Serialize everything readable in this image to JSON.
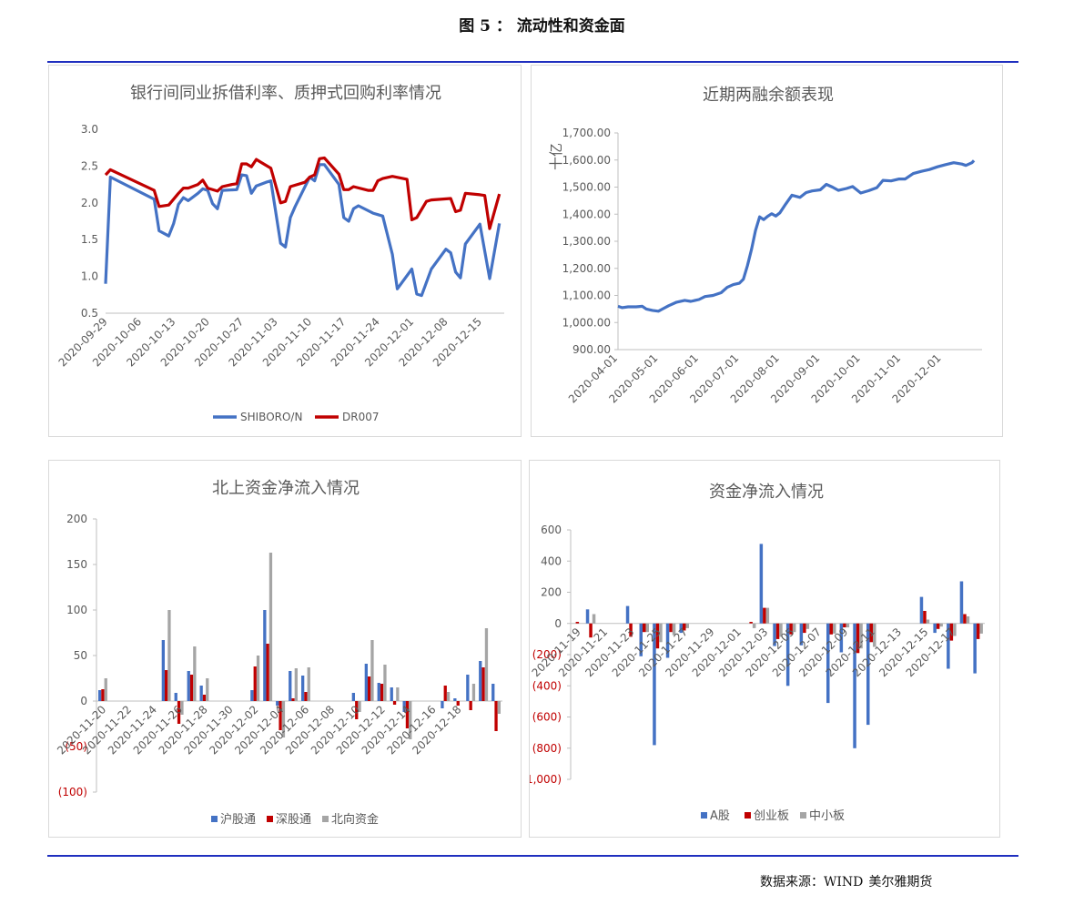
{
  "figure_title": "图 5 ：  流动性和资金面",
  "source": {
    "label": "数据来源：WIND",
    "org": "美尔雅期货"
  },
  "colors": {
    "blue": "#4472C4",
    "red": "#C00000",
    "gray": "#A5A5A5",
    "rule": "#1f2fbf",
    "negative": "#C00000"
  },
  "chart_data": [
    {
      "id": "interbank",
      "type": "line",
      "title": "银行间同业拆借利率、质押式回购利率情况",
      "ylim": [
        0.5,
        3.0
      ],
      "yticks": [
        "0.5",
        "1.0",
        "1.5",
        "2.0",
        "2.5",
        "3.0"
      ],
      "xlabels": [
        "2020-09-29",
        "2020-10-06",
        "2020-10-13",
        "2020-10-20",
        "2020-10-27",
        "2020-11-03",
        "2020-11-10",
        "2020-11-17",
        "2020-11-24",
        "2020-12-01",
        "2020-12-08",
        "2020-12-15"
      ],
      "xrange": [
        0,
        80
      ],
      "series": [
        {
          "name": "SHIBORO/N",
          "color": "#4472C4",
          "points": [
            [
              0,
              0.9
            ],
            [
              1,
              2.35
            ],
            [
              10,
              2.05
            ],
            [
              11,
              1.62
            ],
            [
              13,
              1.55
            ],
            [
              14,
              1.72
            ],
            [
              15,
              1.98
            ],
            [
              16,
              2.07
            ],
            [
              17,
              2.03
            ],
            [
              19,
              2.13
            ],
            [
              20,
              2.19
            ],
            [
              21,
              2.17
            ],
            [
              22,
              1.99
            ],
            [
              23,
              1.92
            ],
            [
              24,
              2.17
            ],
            [
              27,
              2.18
            ],
            [
              28,
              2.38
            ],
            [
              29,
              2.37
            ],
            [
              30,
              2.13
            ],
            [
              31,
              2.23
            ],
            [
              33,
              2.28
            ],
            [
              34,
              2.3
            ],
            [
              36,
              1.45
            ],
            [
              37,
              1.4
            ],
            [
              38,
              1.8
            ],
            [
              39,
              1.95
            ],
            [
              42,
              2.35
            ],
            [
              43,
              2.3
            ],
            [
              44,
              2.52
            ],
            [
              45,
              2.52
            ],
            [
              48,
              2.25
            ],
            [
              49,
              1.8
            ],
            [
              50,
              1.75
            ],
            [
              51,
              1.92
            ],
            [
              52,
              1.96
            ],
            [
              55,
              1.86
            ],
            [
              56,
              1.84
            ],
            [
              57,
              1.82
            ],
            [
              59,
              1.3
            ],
            [
              60,
              0.83
            ],
            [
              63,
              1.1
            ],
            [
              64,
              0.76
            ],
            [
              65,
              0.74
            ],
            [
              67,
              1.1
            ],
            [
              70,
              1.37
            ],
            [
              71,
              1.32
            ],
            [
              72,
              1.06
            ],
            [
              73,
              0.98
            ],
            [
              74,
              1.44
            ],
            [
              77,
              1.71
            ],
            [
              79,
              0.97
            ],
            [
              81,
              1.72
            ]
          ]
        },
        {
          "name": "DR007",
          "color": "#C00000",
          "points": [
            [
              0,
              2.38
            ],
            [
              1,
              2.45
            ],
            [
              10,
              2.17
            ],
            [
              11,
              1.95
            ],
            [
              13,
              1.97
            ],
            [
              15,
              2.13
            ],
            [
              16,
              2.2
            ],
            [
              17,
              2.2
            ],
            [
              19,
              2.25
            ],
            [
              20,
              2.31
            ],
            [
              21,
              2.2
            ],
            [
              23,
              2.16
            ],
            [
              24,
              2.22
            ],
            [
              26,
              2.25
            ],
            [
              27,
              2.26
            ],
            [
              28,
              2.53
            ],
            [
              29,
              2.53
            ],
            [
              30,
              2.49
            ],
            [
              31,
              2.59
            ],
            [
              32,
              2.55
            ],
            [
              34,
              2.47
            ],
            [
              36,
              2.0
            ],
            [
              37,
              2.02
            ],
            [
              38,
              2.22
            ],
            [
              39,
              2.24
            ],
            [
              41,
              2.28
            ],
            [
              42,
              2.35
            ],
            [
              43,
              2.38
            ],
            [
              44,
              2.6
            ],
            [
              45,
              2.61
            ],
            [
              48,
              2.39
            ],
            [
              49,
              2.18
            ],
            [
              50,
              2.18
            ],
            [
              51,
              2.22
            ],
            [
              54,
              2.17
            ],
            [
              55,
              2.17
            ],
            [
              56,
              2.3
            ],
            [
              57,
              2.33
            ],
            [
              59,
              2.36
            ],
            [
              62,
              2.32
            ],
            [
              63,
              1.77
            ],
            [
              64,
              1.8
            ],
            [
              66,
              2.02
            ],
            [
              67,
              2.04
            ],
            [
              71,
              2.06
            ],
            [
              72,
              1.88
            ],
            [
              73,
              1.9
            ],
            [
              74,
              2.13
            ],
            [
              77,
              2.11
            ],
            [
              78,
              2.1
            ],
            [
              79,
              1.65
            ],
            [
              81,
              2.12
            ]
          ]
        }
      ]
    },
    {
      "id": "margin",
      "type": "line",
      "title": "近期两融余额表现",
      "ylabel": "十亿",
      "ylim": [
        900,
        1700
      ],
      "yticks": [
        "900.00",
        "1,000.00",
        "1,100.00",
        "1,200.00",
        "1,300.00",
        "1,400.00",
        "1,500.00",
        "1,600.00",
        "1,700.00"
      ],
      "xlabels": [
        "2020-04-01",
        "2020-05-01",
        "2020-06-01",
        "2020-07-01",
        "2020-08-01",
        "2020-09-01",
        "2020-10-01",
        "2020-11-01",
        "2020-12-01"
      ],
      "xrange": [
        0,
        9
      ],
      "series": [
        {
          "name": "两融余额",
          "color": "#4472C4",
          "points": [
            [
              0,
              1060
            ],
            [
              0.1,
              1055
            ],
            [
              0.25,
              1058
            ],
            [
              0.45,
              1058
            ],
            [
              0.6,
              1060
            ],
            [
              0.7,
              1050
            ],
            [
              0.85,
              1045
            ],
            [
              1.0,
              1042
            ],
            [
              1.1,
              1050
            ],
            [
              1.25,
              1062
            ],
            [
              1.45,
              1075
            ],
            [
              1.65,
              1082
            ],
            [
              1.8,
              1078
            ],
            [
              2.0,
              1085
            ],
            [
              2.15,
              1096
            ],
            [
              2.35,
              1100
            ],
            [
              2.55,
              1110
            ],
            [
              2.7,
              1130
            ],
            [
              2.85,
              1140
            ],
            [
              3.0,
              1145
            ],
            [
              3.1,
              1160
            ],
            [
              3.2,
              1210
            ],
            [
              3.3,
              1270
            ],
            [
              3.4,
              1340
            ],
            [
              3.5,
              1390
            ],
            [
              3.6,
              1380
            ],
            [
              3.7,
              1392
            ],
            [
              3.8,
              1402
            ],
            [
              3.9,
              1393
            ],
            [
              4.0,
              1405
            ],
            [
              4.15,
              1438
            ],
            [
              4.3,
              1470
            ],
            [
              4.5,
              1462
            ],
            [
              4.65,
              1480
            ],
            [
              4.8,
              1486
            ],
            [
              5.0,
              1490
            ],
            [
              5.15,
              1510
            ],
            [
              5.3,
              1500
            ],
            [
              5.45,
              1488
            ],
            [
              5.65,
              1495
            ],
            [
              5.8,
              1502
            ],
            [
              6.0,
              1478
            ],
            [
              6.2,
              1487
            ],
            [
              6.4,
              1498
            ],
            [
              6.55,
              1525
            ],
            [
              6.75,
              1523
            ],
            [
              6.95,
              1530
            ],
            [
              7.1,
              1530
            ],
            [
              7.3,
              1550
            ],
            [
              7.5,
              1558
            ],
            [
              7.7,
              1565
            ],
            [
              7.9,
              1575
            ],
            [
              8.1,
              1583
            ],
            [
              8.3,
              1590
            ],
            [
              8.5,
              1585
            ],
            [
              8.6,
              1580
            ],
            [
              8.75,
              1590
            ],
            [
              8.8,
              1598
            ]
          ]
        }
      ]
    },
    {
      "id": "northbound",
      "type": "bar",
      "title": "北上资金净流入情况",
      "ylim": [
        -100,
        200
      ],
      "yticks": [
        "(100)",
        "(50)",
        "0",
        "50",
        "100",
        "150",
        "200"
      ],
      "xlabels": [
        "2020-11-20",
        "2020-11-22",
        "2020-11-24",
        "2020-11-26",
        "2020-11-28",
        "2020-11-30",
        "2020-12-02",
        "2020-12-04",
        "2020-12-06",
        "2020-12-08",
        "2020-12-10",
        "2020-12-12",
        "2020-12-14",
        "2020-12-16",
        "2020-12-18"
      ],
      "series": [
        {
          "name": "沪股通",
          "color": "#4472C4",
          "values": [
            12,
            0,
            0,
            0,
            0,
            67,
            9,
            33,
            17,
            0,
            0,
            0,
            12,
            100,
            -5,
            33,
            28,
            0,
            0,
            0,
            9,
            41,
            20,
            15,
            -12,
            0,
            0,
            -8,
            3,
            29,
            44,
            19
          ]
        },
        {
          "name": "深股通",
          "color": "#C00000",
          "values": [
            13,
            0,
            0,
            0,
            0,
            34,
            -25,
            29,
            7,
            0,
            0,
            0,
            38,
            63,
            -32,
            3,
            10,
            0,
            0,
            0,
            -20,
            27,
            19,
            -4,
            -30,
            0,
            0,
            17,
            -5,
            -10,
            37,
            -33
          ]
        },
        {
          "name": "北向资金",
          "color": "#A5A5A5",
          "values": [
            25,
            0,
            0,
            0,
            0,
            100,
            -15,
            60,
            25,
            0,
            0,
            0,
            50,
            163,
            -40,
            36,
            37,
            0,
            0,
            0,
            -12,
            67,
            40,
            15,
            -42,
            0,
            0,
            10,
            0,
            19,
            80,
            -14
          ]
        }
      ]
    },
    {
      "id": "fundflow",
      "type": "bar",
      "title": "资金净流入情况",
      "ylim": [
        -1000,
        600
      ],
      "yticks": [
        "(1,000)",
        "(800)",
        "(600)",
        "(400)",
        "(200)",
        "0",
        "200",
        "400",
        "600"
      ],
      "xlabels": [
        "2020-11-19",
        "2020-11-21",
        "2020-11-23",
        "2020-11-25",
        "2020-11-27",
        "2020-11-29",
        "2020-12-01",
        "2020-12-03",
        "2020-12-05",
        "2020-12-07",
        "2020-12-09",
        "2020-12-11",
        "2020-12-13",
        "2020-12-15",
        "2020-12-17"
      ],
      "series": [
        {
          "name": "A股",
          "color": "#4472C4",
          "values": [
            0,
            90,
            0,
            0,
            112,
            -210,
            -780,
            -220,
            -60,
            0,
            0,
            0,
            0,
            0,
            510,
            -145,
            -400,
            -140,
            0,
            -510,
            -185,
            -800,
            -650,
            0,
            0,
            0,
            170,
            -60,
            -290,
            270,
            -320
          ]
        },
        {
          "name": "创业板",
          "color": "#C00000",
          "values": [
            10,
            -90,
            0,
            0,
            -85,
            -55,
            -160,
            -55,
            -45,
            0,
            0,
            0,
            0,
            10,
            100,
            -100,
            -70,
            -60,
            0,
            -70,
            -25,
            -190,
            -120,
            0,
            0,
            0,
            80,
            -35,
            -110,
            60,
            -100
          ]
        },
        {
          "name": "中小板",
          "color": "#A5A5A5",
          "values": [
            0,
            60,
            0,
            0,
            0,
            -55,
            -120,
            -75,
            -30,
            0,
            0,
            0,
            0,
            -30,
            100,
            -85,
            -55,
            -35,
            0,
            -65,
            -25,
            -160,
            -150,
            0,
            0,
            0,
            25,
            -20,
            -80,
            45,
            -65
          ]
        }
      ]
    }
  ]
}
